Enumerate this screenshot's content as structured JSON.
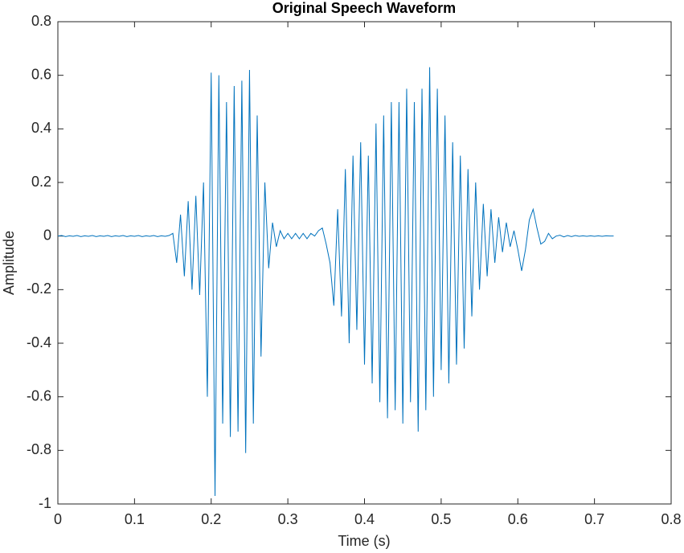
{
  "chart_data": {
    "type": "line",
    "title": "Original Speech Waveform",
    "xlabel": "Time (s)",
    "ylabel": "Amplitude",
    "x": [
      0,
      0.005,
      0.01,
      0.015,
      0.02,
      0.025,
      0.03,
      0.035,
      0.04,
      0.045,
      0.05,
      0.055,
      0.06,
      0.065,
      0.07,
      0.075,
      0.08,
      0.085,
      0.09,
      0.095,
      0.1,
      0.105,
      0.11,
      0.115,
      0.12,
      0.125,
      0.13,
      0.135,
      0.14,
      0.145,
      0.15,
      0.155,
      0.16,
      0.165,
      0.17,
      0.175,
      0.18,
      0.185,
      0.19,
      0.195,
      0.2,
      0.205,
      0.21,
      0.215,
      0.22,
      0.225,
      0.23,
      0.235,
      0.24,
      0.245,
      0.25,
      0.255,
      0.26,
      0.265,
      0.27,
      0.275,
      0.28,
      0.285,
      0.29,
      0.295,
      0.3,
      0.305,
      0.31,
      0.315,
      0.32,
      0.325,
      0.33,
      0.335,
      0.34,
      0.345,
      0.35,
      0.355,
      0.36,
      0.365,
      0.37,
      0.375,
      0.38,
      0.385,
      0.39,
      0.395,
      0.4,
      0.405,
      0.41,
      0.415,
      0.42,
      0.425,
      0.43,
      0.435,
      0.44,
      0.445,
      0.45,
      0.455,
      0.46,
      0.465,
      0.47,
      0.475,
      0.48,
      0.485,
      0.49,
      0.495,
      0.5,
      0.505,
      0.51,
      0.515,
      0.52,
      0.525,
      0.53,
      0.535,
      0.54,
      0.545,
      0.55,
      0.555,
      0.56,
      0.565,
      0.57,
      0.575,
      0.58,
      0.585,
      0.59,
      0.595,
      0.6,
      0.605,
      0.61,
      0.615,
      0.62,
      0.625,
      0.63,
      0.635,
      0.64,
      0.645,
      0.65,
      0.655,
      0.66,
      0.665,
      0.67,
      0.675,
      0.68,
      0.685,
      0.69,
      0.695,
      0.7,
      0.705,
      0.71,
      0.715,
      0.72,
      0.725
    ],
    "series": [
      {
        "color": "#0072bd",
        "values": [
          0,
          0.002,
          -0.002,
          0.001,
          -0.001,
          0.002,
          -0.002,
          0.001,
          -0.001,
          0.002,
          -0.002,
          0.001,
          -0.001,
          0.002,
          -0.002,
          0.001,
          -0.001,
          0.002,
          -0.002,
          0.001,
          -0.001,
          0.002,
          -0.002,
          0.001,
          -0.001,
          0.002,
          -0.002,
          0.001,
          -0.001,
          0.002,
          0.01,
          -0.1,
          0.08,
          -0.15,
          0.13,
          -0.2,
          0.15,
          -0.22,
          0.2,
          -0.6,
          0.61,
          -0.97,
          0.6,
          -0.7,
          0.5,
          -0.75,
          0.56,
          -0.73,
          0.58,
          -0.81,
          0.62,
          -0.7,
          0.45,
          -0.45,
          0.2,
          -0.12,
          0.05,
          -0.04,
          0.02,
          -0.01,
          0.01,
          -0.01,
          0.01,
          -0.01,
          0.01,
          -0.01,
          0.01,
          0,
          0.02,
          0.03,
          -0.03,
          -0.1,
          -0.26,
          0.1,
          -0.3,
          0.25,
          -0.4,
          0.3,
          -0.35,
          0.35,
          -0.48,
          0.3,
          -0.55,
          0.42,
          -0.62,
          0.45,
          -0.68,
          0.5,
          -0.65,
          0.5,
          -0.7,
          0.55,
          -0.62,
          0.5,
          -0.73,
          0.55,
          -0.65,
          0.63,
          -0.6,
          0.55,
          -0.5,
          0.45,
          -0.55,
          0.35,
          -0.48,
          0.3,
          -0.42,
          0.25,
          -0.3,
          0.2,
          -0.2,
          0.12,
          -0.15,
          0.1,
          -0.1,
          0.07,
          -0.06,
          0.05,
          -0.04,
          0.02,
          -0.05,
          -0.13,
          -0.05,
          0.06,
          0.1,
          0.03,
          -0.03,
          -0.02,
          0.01,
          -0.01,
          0,
          0.003,
          -0.003,
          0.002,
          -0.002,
          0.002,
          -0.001,
          0.001,
          -0.001,
          0.001,
          -0.001,
          0.001,
          -0.001,
          0.001,
          0,
          0
        ]
      }
    ],
    "xlim": [
      0,
      0.8
    ],
    "xticks": [
      0,
      0.1,
      0.2,
      0.3,
      0.4,
      0.5,
      0.6,
      0.7,
      0.8
    ],
    "ylim": [
      -1,
      0.8
    ],
    "yticks": [
      -1,
      -0.8,
      -0.6,
      -0.4,
      -0.2,
      0,
      0.2,
      0.4,
      0.6,
      0.8
    ]
  }
}
